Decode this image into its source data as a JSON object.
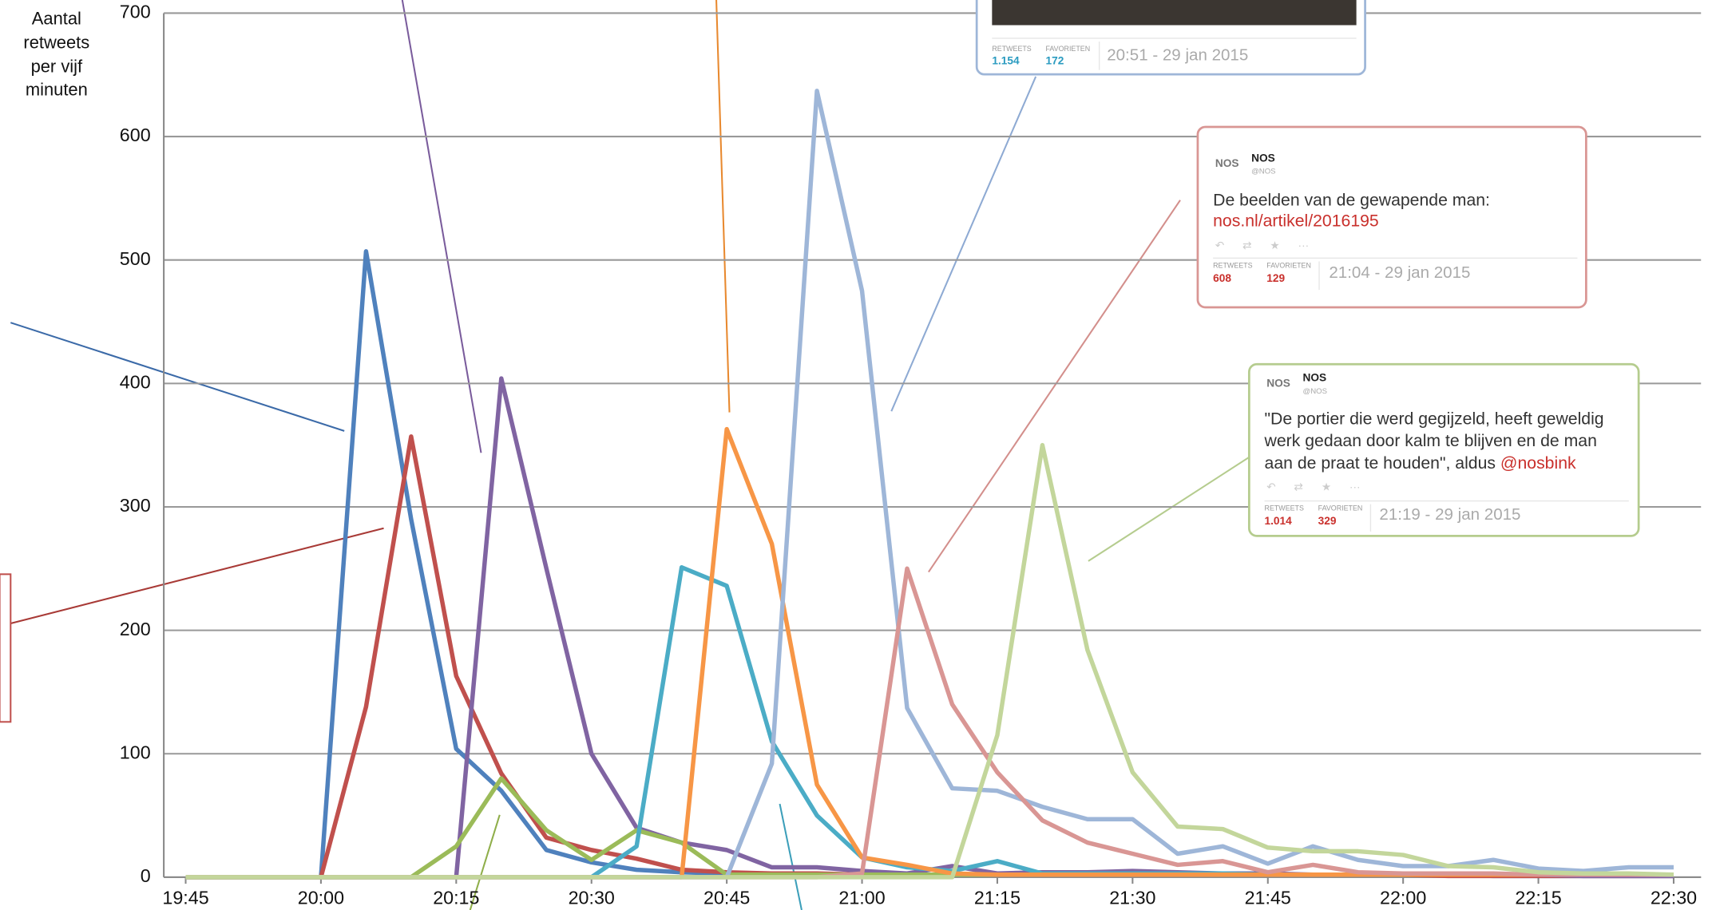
{
  "chart_data": {
    "type": "line",
    "ylabel": [
      "Aantal",
      "retweets",
      "per vijf",
      "minuten"
    ],
    "categories": [
      "19:45",
      null,
      null,
      "20:00",
      null,
      null,
      "20:15",
      null,
      null,
      "20:30",
      null,
      null,
      "20:45",
      null,
      null,
      "21:00",
      null,
      null,
      "21:15",
      null,
      null,
      "21:30",
      null,
      null,
      "21:45",
      null,
      null,
      "22:00",
      null,
      null,
      "22:15",
      null,
      null,
      "22:30"
    ],
    "ylim": [
      0,
      700
    ],
    "yticks": [
      0,
      100,
      200,
      300,
      400,
      500,
      600,
      700
    ],
    "grid": true,
    "series": [
      {
        "color": "#4f81bd",
        "values": [
          0,
          0,
          0,
          0,
          507,
          290,
          104,
          70,
          22,
          12,
          6,
          4,
          3,
          2,
          2,
          2,
          2,
          2,
          2,
          2,
          2,
          2,
          2,
          2,
          2,
          2,
          2,
          2,
          2,
          1,
          1,
          1,
          1,
          1
        ]
      },
      {
        "color": "#c0504d",
        "values": [
          0,
          0,
          0,
          0,
          138,
          357,
          163,
          84,
          32,
          22,
          15,
          6,
          4,
          3,
          3,
          2,
          2,
          2,
          2,
          2,
          2,
          2,
          2,
          2,
          2,
          2,
          2,
          2,
          1,
          1,
          1,
          1,
          1,
          1
        ]
      },
      {
        "color": "#8064a2",
        "values": [
          0,
          0,
          0,
          0,
          0,
          0,
          0,
          404,
          250,
          100,
          40,
          28,
          22,
          8,
          8,
          5,
          3,
          9,
          3,
          4,
          4,
          5,
          4,
          3,
          3,
          2,
          2,
          2,
          2,
          2,
          2,
          1,
          1,
          1
        ]
      },
      {
        "color": "#9bbb59",
        "values": [
          0,
          0,
          0,
          0,
          0,
          0,
          25,
          80,
          38,
          14,
          38,
          28,
          2,
          2,
          2,
          2,
          2,
          2,
          2,
          2,
          2,
          2,
          2,
          2,
          2,
          2,
          2,
          2,
          2,
          2,
          2,
          2,
          2,
          2
        ]
      },
      {
        "color": "#4bacc6",
        "values": [
          0,
          0,
          0,
          0,
          0,
          0,
          0,
          0,
          0,
          0,
          25,
          251,
          236,
          110,
          50,
          16,
          8,
          5,
          13,
          3,
          3,
          3,
          3,
          3,
          2,
          2,
          2,
          2,
          2,
          2,
          2,
          2,
          2,
          2
        ]
      },
      {
        "color": "#f79646",
        "values": [
          0,
          0,
          0,
          0,
          0,
          0,
          0,
          0,
          0,
          0,
          0,
          0,
          363,
          270,
          75,
          16,
          10,
          3,
          2,
          2,
          2,
          2,
          2,
          2,
          2,
          2,
          2,
          2,
          2,
          2,
          2,
          2,
          2,
          2
        ]
      },
      {
        "color": "#9eb6d8",
        "values": [
          0,
          0,
          0,
          0,
          0,
          0,
          0,
          0,
          0,
          0,
          0,
          0,
          0,
          92,
          637,
          475,
          137,
          72,
          70,
          57,
          47,
          47,
          19,
          25,
          11,
          25,
          14,
          9,
          9,
          14,
          7,
          5,
          8,
          8
        ]
      },
      {
        "color": "#d99694",
        "values": [
          0,
          0,
          0,
          0,
          0,
          0,
          0,
          0,
          0,
          0,
          0,
          0,
          0,
          0,
          0,
          3,
          250,
          140,
          85,
          46,
          28,
          19,
          10,
          13,
          4,
          10,
          4,
          3,
          3,
          3,
          2,
          2,
          2,
          2
        ]
      },
      {
        "color": "#c3d69b",
        "values": [
          0,
          0,
          0,
          0,
          0,
          0,
          0,
          0,
          0,
          0,
          0,
          0,
          0,
          0,
          0,
          0,
          0,
          0,
          115,
          350,
          184,
          85,
          41,
          39,
          24,
          21,
          21,
          18,
          9,
          8,
          4,
          3,
          3,
          2
        ]
      }
    ]
  },
  "tweets": [
    {
      "retweets_label": "RETWEETS",
      "favorites_label": "FAVORIETEN",
      "retweets": "1.154",
      "favorites": "172",
      "date": "20:51 - 29 jan 2015"
    },
    {
      "logo": "NOS",
      "name": "NOS",
      "handle": "@NOS",
      "lines": [
        "De beelden van de gewapende man:"
      ],
      "link": "nos.nl/artikel/2016195",
      "retweets_label": "RETWEETS",
      "favorites_label": "FAVORIETEN",
      "retweets": "608",
      "favorites": "129",
      "date": "21:04 - 29 jan 2015"
    },
    {
      "logo": "NOS",
      "name": "NOS",
      "handle": "@NOS",
      "lines": [
        "\"De portier die werd gegijzeld, heeft geweldig",
        "werk gedaan door kalm te blijven en de man",
        "aan de praat te houden\", aldus"
      ],
      "mention": "@nosbink",
      "retweets_label": "RETWEETS",
      "favorites_label": "FAVORIETEN",
      "retweets": "1.014",
      "favorites": "329",
      "date": "21:19 - 29 jan 2015"
    }
  ]
}
